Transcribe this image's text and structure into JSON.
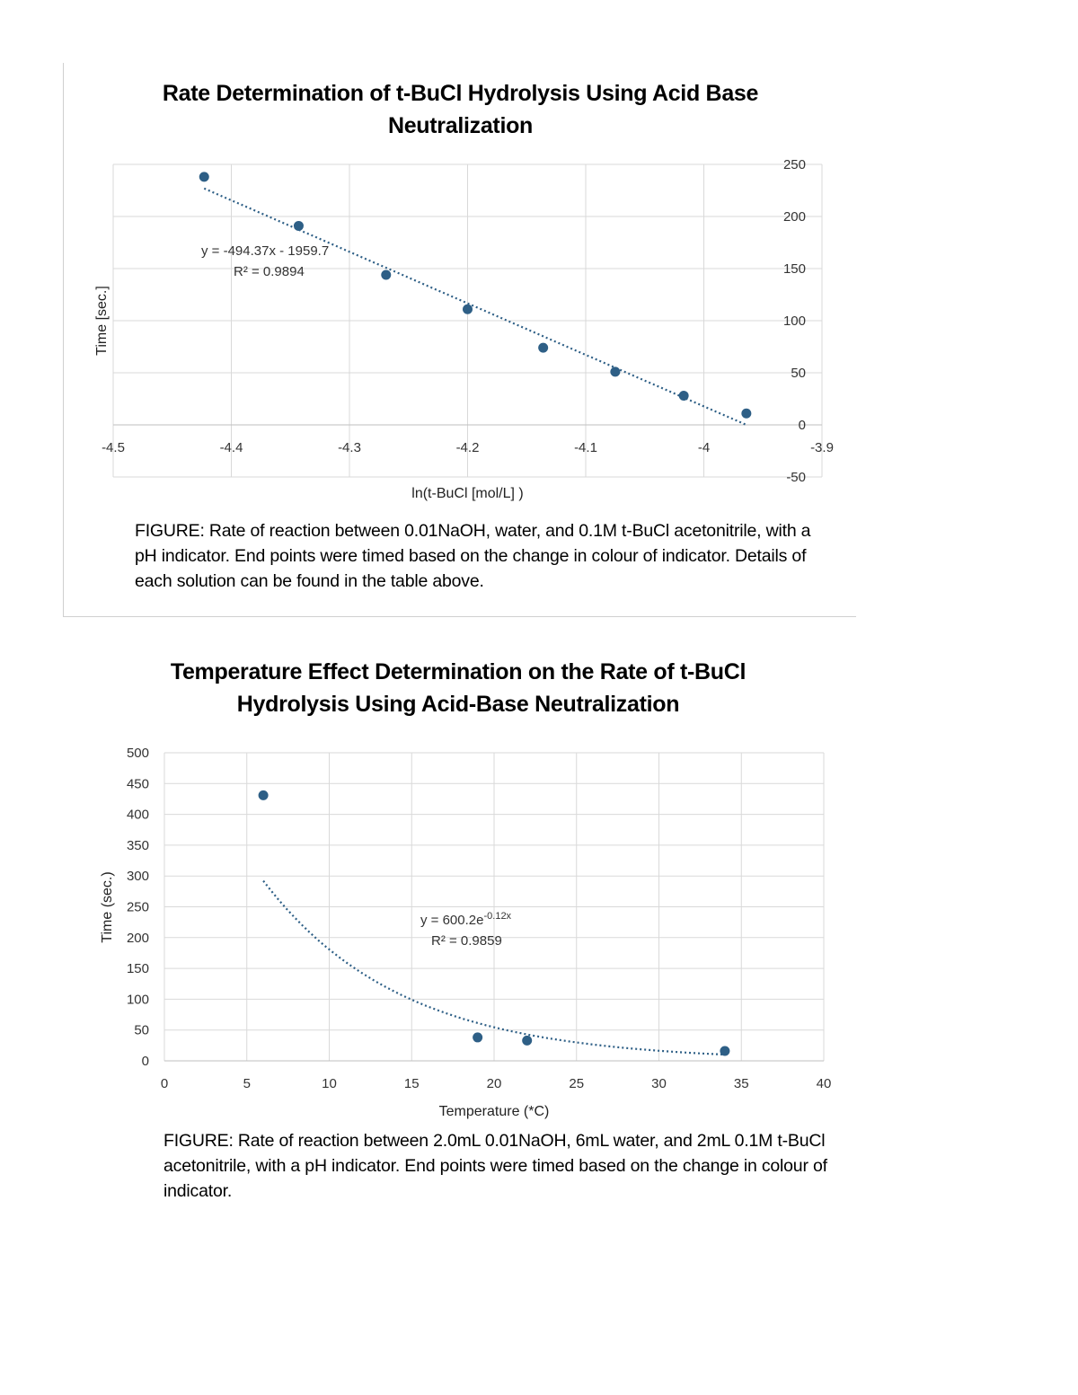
{
  "chart_data": [
    {
      "type": "scatter",
      "title": "Rate Determination of t-BuCl Hydrolysis Using Acid Base Neutralization",
      "xlabel": "ln(t-BuCl [mol/L] )",
      "ylabel": "Time [sec.]",
      "xlim": [
        -4.5,
        -3.9
      ],
      "ylim": [
        -50,
        250
      ],
      "xticks": [
        "-4.5",
        "-4.4",
        "-4.3",
        "-4.2",
        "-4.1",
        "-4",
        "-3.9"
      ],
      "yticks": [
        "-50",
        "0",
        "50",
        "100",
        "150",
        "200",
        "250"
      ],
      "y_axis_side": "right",
      "grid": true,
      "x": [
        -4.423,
        -4.343,
        -4.269,
        -4.2,
        -4.136,
        -4.075,
        -4.017,
        -3.964
      ],
      "y": [
        238,
        191,
        144,
        111,
        74,
        51,
        28,
        11
      ],
      "trendline": {
        "type": "linear",
        "slope": -494.37,
        "intercept": -1959.7,
        "equation": "y = -494.37x - 1959.7",
        "r2": "R² = 0.9894"
      },
      "marker_color": "#2e5f86",
      "caption": "FIGURE: Rate of reaction between 0.01NaOH, water, and 0.1M t-BuCl acetonitrile, with a pH indicator. End points were timed based on the change in colour of indicator. Details of each solution can be found in the table above."
    },
    {
      "type": "scatter",
      "title": "Temperature Effect Determination on the Rate of t-BuCl Hydrolysis Using Acid-Base Neutralization",
      "xlabel": "Temperature (*C)",
      "ylabel": "Time (sec.)",
      "xlim": [
        0,
        40
      ],
      "ylim": [
        0,
        500
      ],
      "xticks": [
        "0",
        "5",
        "10",
        "15",
        "20",
        "25",
        "30",
        "35",
        "40"
      ],
      "yticks": [
        "0",
        "50",
        "100",
        "150",
        "200",
        "250",
        "300",
        "350",
        "400",
        "450",
        "500"
      ],
      "y_axis_side": "left",
      "grid": true,
      "x": [
        6,
        19,
        22,
        34
      ],
      "y": [
        431,
        38,
        33,
        16
      ],
      "trendline": {
        "type": "exponential",
        "a": 600.2,
        "b": -0.12,
        "equation": "y = 600.2e",
        "exponent": "-0.12x",
        "r2": "R² = 0.9859"
      },
      "marker_color": "#2e5f86",
      "caption": "FIGURE: Rate of reaction between 2.0mL 0.01NaOH, 6mL water, and 2mL 0.1M t-BuCl acetonitrile, with a pH indicator. End points were timed based on the change in colour of indicator."
    }
  ]
}
